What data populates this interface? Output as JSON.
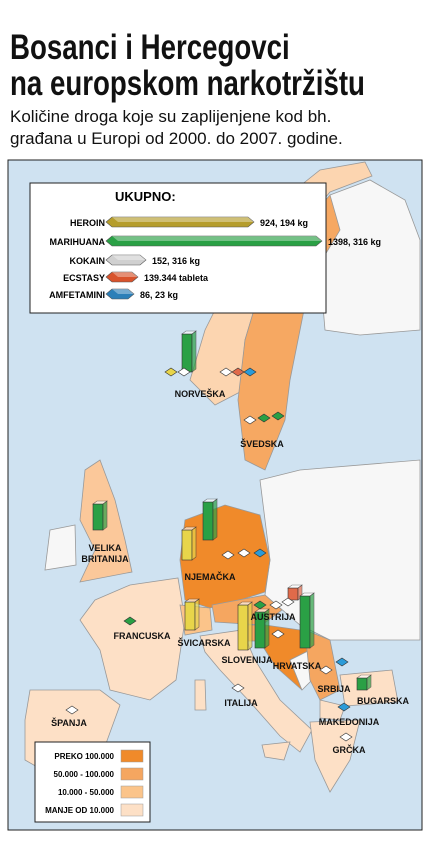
{
  "header": {
    "title_line1": "Bosanci i Hercegovci",
    "title_line2": "na europskom narkotržištu",
    "subtitle_line1": "Količine droga koje su zaplijenjene kod bh.",
    "subtitle_line2": "građana u Europi od 2000. do 2007. godine."
  },
  "totals": {
    "title": "UKUPNO:",
    "rows": [
      {
        "drug": "HEROIN",
        "amount": "924, 194 kg"
      },
      {
        "drug": "MARIHUANA",
        "amount": "1398, 316 kg"
      },
      {
        "drug": "KOKAIN",
        "amount": "152, 316 kg"
      },
      {
        "drug": "ECSTASY",
        "amount": "139.344 tableta"
      },
      {
        "drug": "AMFETAMINI",
        "amount": "86, 23 kg"
      }
    ]
  },
  "countries": [
    "NORVEŠKA",
    "ŠVEDSKA",
    "VELIKA BRITANIJA",
    "NJEMAČKA",
    "FRANCUSKA",
    "ŠVICARSKA",
    "AUSTRIJA",
    "SLOVENIJA",
    "HRVATSKA",
    "SRBIJA",
    "BUGARSKA",
    "ITALIJA",
    "MAKEDONIJA",
    "GRČKA",
    "ŠPANJA"
  ],
  "legend": [
    "PREKO 100.000",
    "50.000 - 100.000",
    "10.000 - 50.000",
    "MANJE OD 10.000"
  ]
}
